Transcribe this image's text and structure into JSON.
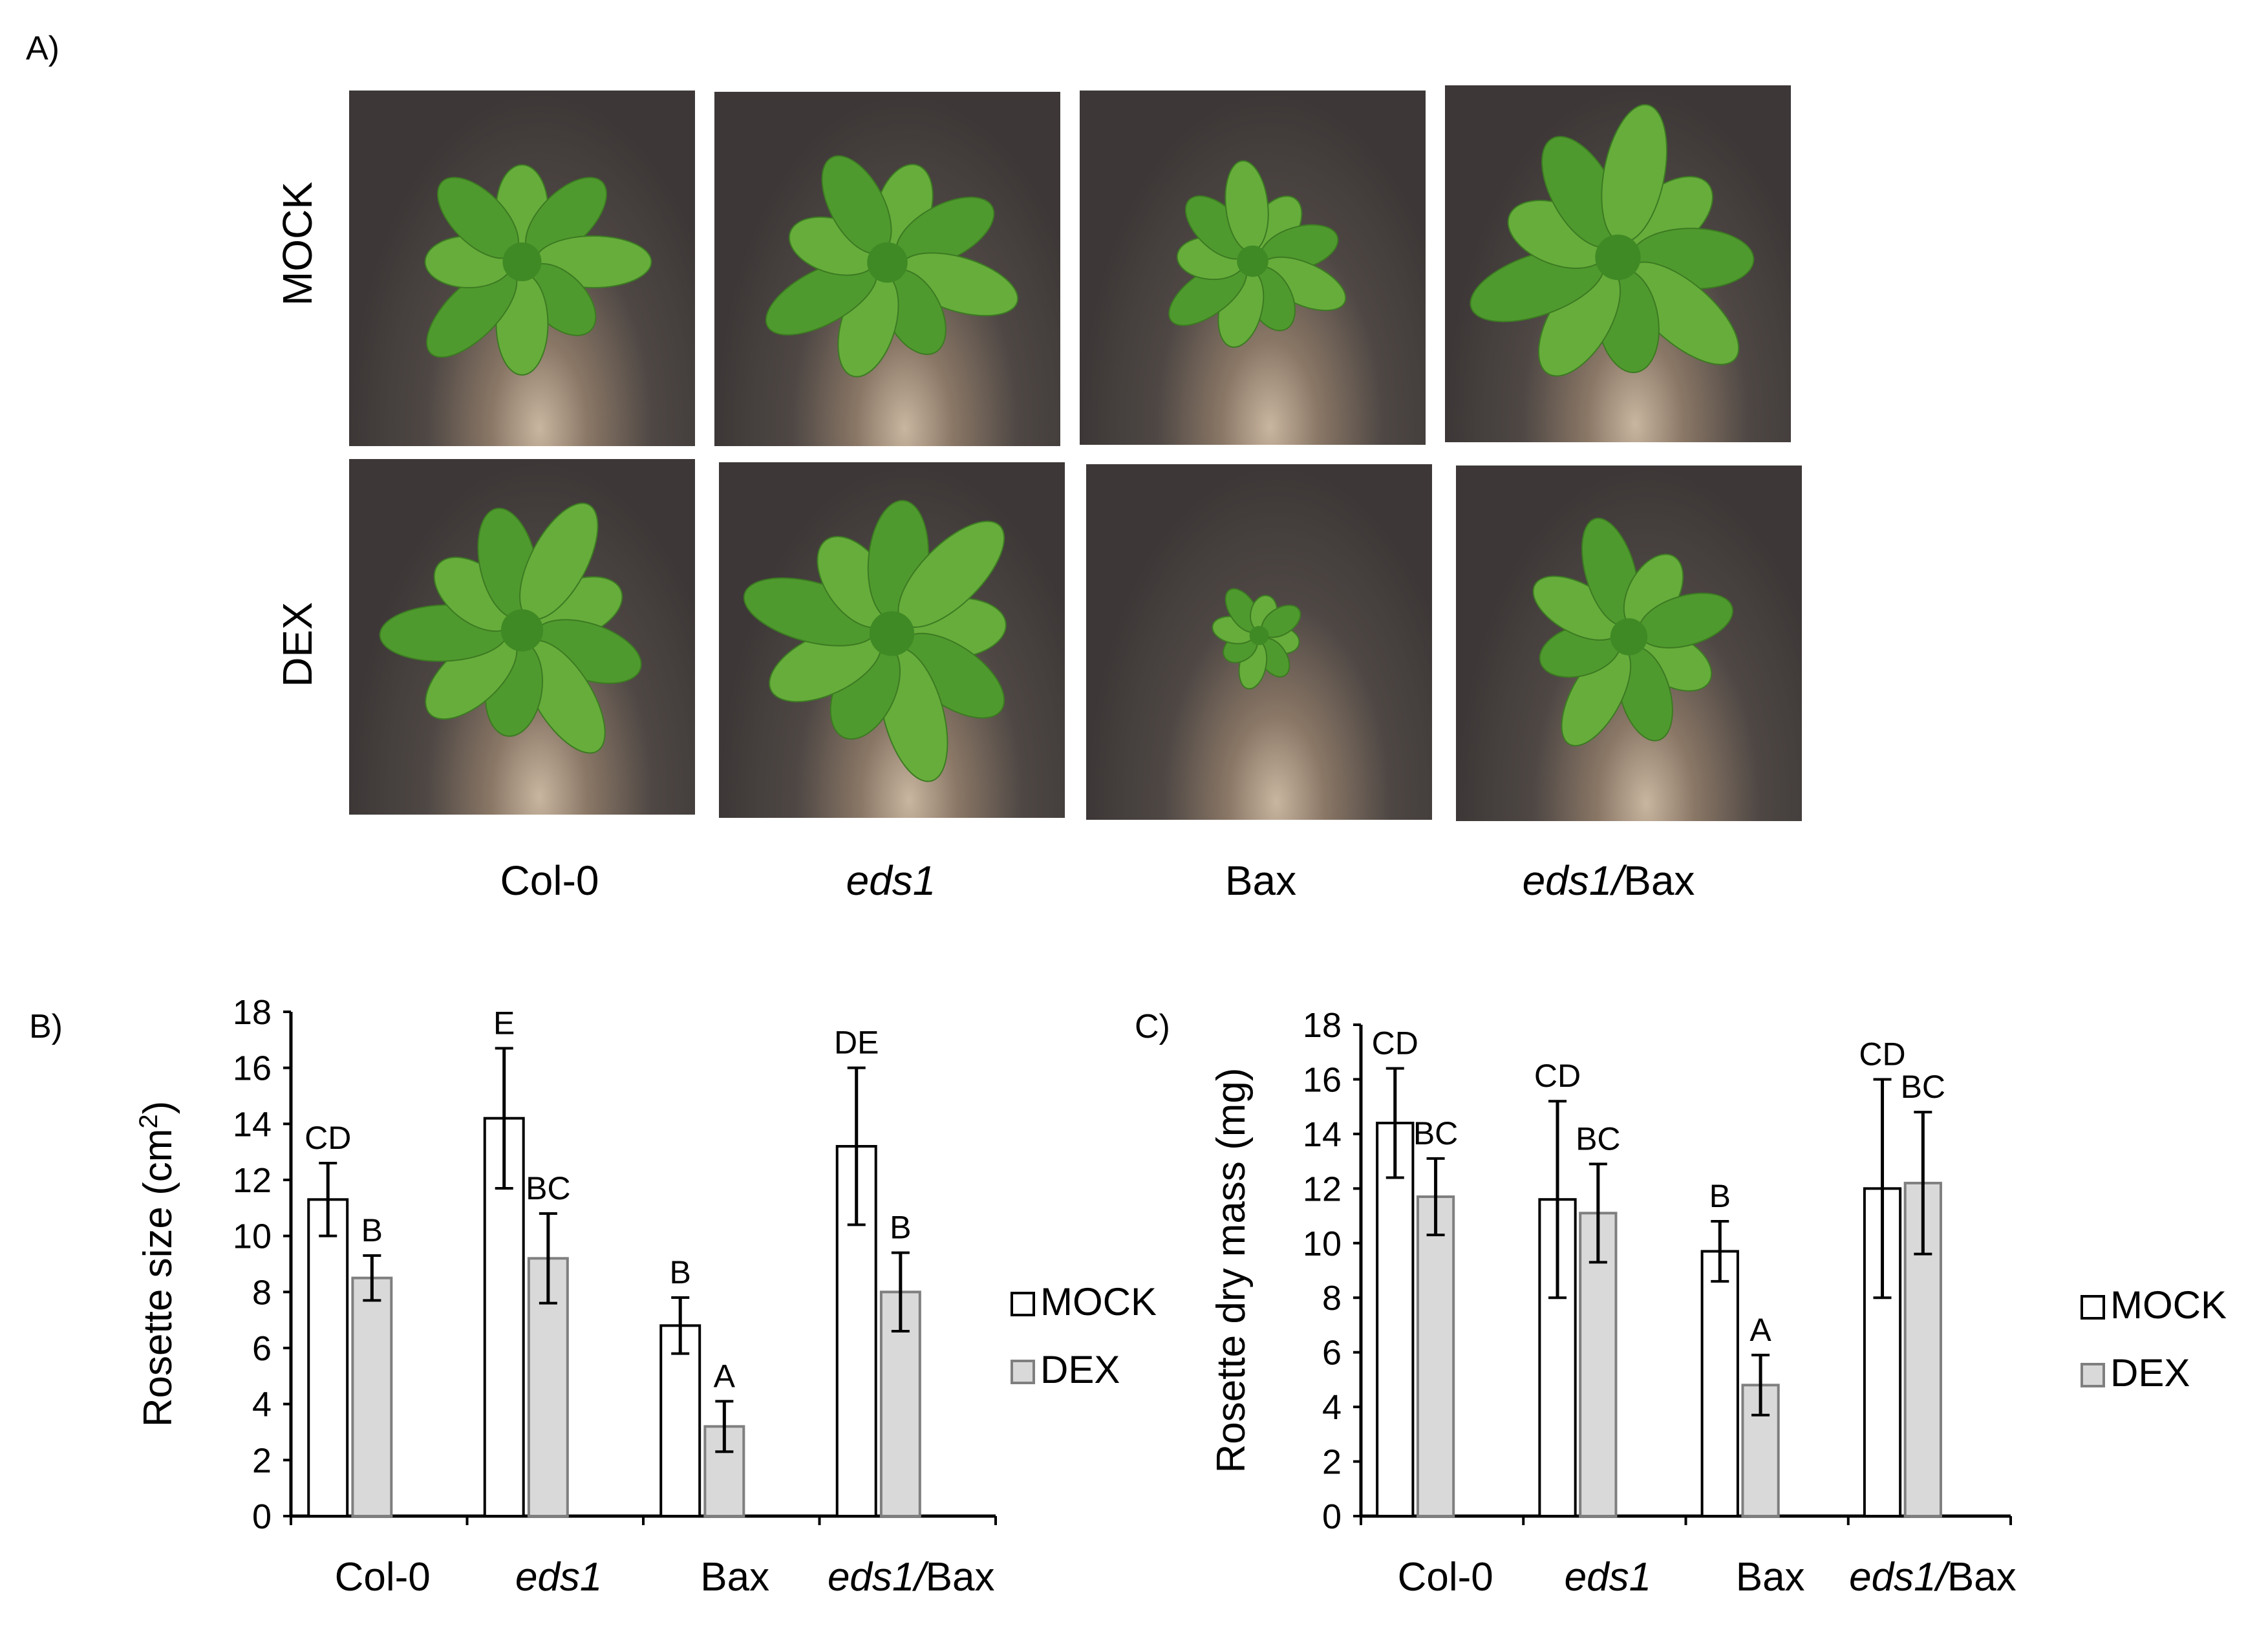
{
  "panel_a": {
    "label": "A)",
    "row_labels": [
      "MOCK",
      "DEX"
    ],
    "col_labels": [
      {
        "italic": "",
        "normal": "Col-0"
      },
      {
        "italic": "eds1",
        "normal": ""
      },
      {
        "italic": "",
        "normal": "Bax"
      },
      {
        "italic": "eds1/",
        "normal": "Bax"
      }
    ]
  },
  "colors": {
    "mock_fill": "#ffffff",
    "dex_fill": "#d9d9d9",
    "stroke": "#000000",
    "plant": "#5aa033"
  },
  "chart_data": [
    {
      "panel_label": "B)",
      "type": "bar",
      "categories": [
        {
          "italic": "",
          "normal": "Col-0"
        },
        {
          "italic": "eds1",
          "normal": ""
        },
        {
          "italic": "",
          "normal": "Bax"
        },
        {
          "italic": "eds1/",
          "normal": "Bax"
        }
      ],
      "ylabel": "Rosette size (cm",
      "ylabel_sup": "2",
      "ylabel_end": ")",
      "ylim": [
        0,
        18
      ],
      "yticks": [
        "0",
        "2",
        "4",
        "6",
        "8",
        "10",
        "12",
        "14",
        "16",
        "18"
      ],
      "legend": "right",
      "series": [
        {
          "name": "MOCK",
          "values": [
            11.3,
            14.2,
            6.8,
            13.2
          ],
          "errors": [
            1.3,
            2.5,
            1.0,
            2.8
          ],
          "letters": [
            "CD",
            "E",
            "B",
            "DE"
          ]
        },
        {
          "name": "DEX",
          "values": [
            8.5,
            9.2,
            3.2,
            8.0
          ],
          "errors": [
            0.8,
            1.6,
            0.9,
            1.4
          ],
          "letters": [
            "B",
            "BC",
            "A",
            "B"
          ]
        }
      ]
    },
    {
      "panel_label": "C)",
      "type": "bar",
      "categories": [
        {
          "italic": "",
          "normal": "Col-0"
        },
        {
          "italic": "eds1",
          "normal": ""
        },
        {
          "italic": "",
          "normal": "Bax"
        },
        {
          "italic": "eds1/",
          "normal": "Bax"
        }
      ],
      "ylabel": "Rosette dry mass (mg)",
      "ylabel_sup": "",
      "ylabel_end": "",
      "ylim": [
        0,
        18
      ],
      "yticks": [
        "0",
        "2",
        "4",
        "6",
        "8",
        "10",
        "12",
        "14",
        "16",
        "18"
      ],
      "legend": "right",
      "series": [
        {
          "name": "MOCK",
          "values": [
            14.4,
            11.6,
            9.7,
            12.0
          ],
          "errors": [
            2.0,
            3.6,
            1.1,
            4.0
          ],
          "letters": [
            "CD",
            "CD",
            "B",
            "CD"
          ]
        },
        {
          "name": "DEX",
          "values": [
            11.7,
            11.1,
            4.8,
            12.2
          ],
          "errors": [
            1.4,
            1.8,
            1.1,
            2.6
          ],
          "letters": [
            "BC",
            "BC",
            "A",
            "BC"
          ]
        }
      ]
    }
  ]
}
